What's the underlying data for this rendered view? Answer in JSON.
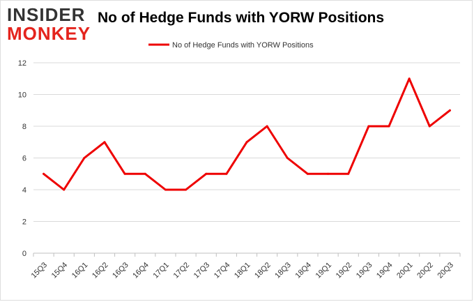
{
  "branding": {
    "logo_line1": "INSIDER",
    "logo_line2": "MONKEY"
  },
  "chart_data": {
    "type": "line",
    "title": "No of Hedge Funds with YORW Positions",
    "categories": [
      "15Q3",
      "15Q4",
      "16Q1",
      "16Q2",
      "16Q3",
      "16Q4",
      "17Q1",
      "17Q2",
      "17Q3",
      "17Q4",
      "18Q1",
      "18Q2",
      "18Q3",
      "18Q4",
      "19Q1",
      "19Q2",
      "19Q3",
      "19Q4",
      "20Q1",
      "20Q2",
      "20Q3"
    ],
    "series": [
      {
        "name": "No of Hedge Funds with YORW  Positions",
        "color": "#ee0000",
        "values": [
          5,
          4,
          6,
          7,
          5,
          5,
          4,
          4,
          5,
          5,
          7,
          8,
          6,
          5,
          5,
          5,
          8,
          8,
          11,
          8,
          9
        ]
      }
    ],
    "ylim": [
      0,
      12
    ],
    "yticks": [
      0,
      2,
      4,
      6,
      8,
      10,
      12
    ],
    "xlabel": "",
    "ylabel": "",
    "grid": true,
    "legend_position": "top-center"
  }
}
